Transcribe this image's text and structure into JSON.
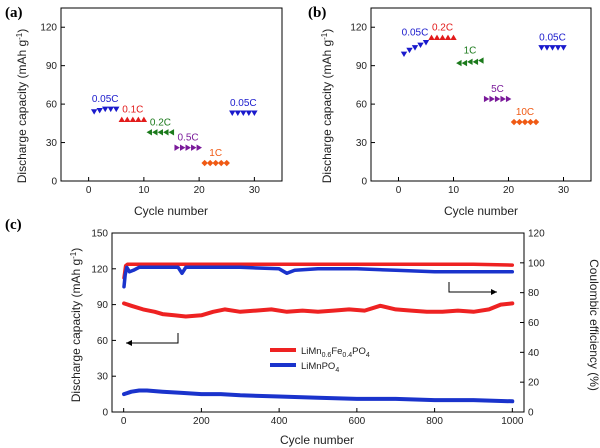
{
  "chart_data": [
    {
      "id": "a",
      "panel_label": "(a)",
      "type": "scatter",
      "xlabel": "Cycle number",
      "ylabel": "Discharge capacity (mAh g",
      "ylabel_unit_sup": "-1",
      "ylabel_close": ")",
      "xlim": [
        -5,
        35
      ],
      "ylim": [
        0,
        135
      ],
      "xticks": [
        0,
        10,
        20,
        30
      ],
      "yticks": [
        0,
        30,
        60,
        90,
        120
      ],
      "groups": [
        {
          "label": "0.05C",
          "color": "#1a1acc",
          "marker": "triangle-down",
          "x": [
            1,
            2,
            3,
            4,
            5
          ],
          "y": [
            54,
            55,
            56,
            56,
            56
          ]
        },
        {
          "label": "0.1C",
          "color": "#e21b1b",
          "marker": "triangle-up",
          "x": [
            6,
            7,
            8,
            9,
            10
          ],
          "y": [
            48,
            48,
            48,
            48,
            48
          ]
        },
        {
          "label": "0.2C",
          "color": "#1b7a1b",
          "marker": "triangle-left",
          "x": [
            11,
            12,
            13,
            14,
            15
          ],
          "y": [
            38,
            38,
            38,
            38,
            38
          ]
        },
        {
          "label": "0.5C",
          "color": "#7a1a9a",
          "marker": "triangle-right",
          "x": [
            16,
            17,
            18,
            19,
            20
          ],
          "y": [
            26,
            26,
            26,
            26,
            26
          ]
        },
        {
          "label": "1C",
          "color": "#f05a14",
          "marker": "diamond",
          "x": [
            21,
            22,
            23,
            24,
            25
          ],
          "y": [
            14,
            14,
            14,
            14,
            14
          ]
        },
        {
          "label": "0.05C",
          "color": "#1a1acc",
          "marker": "triangle-down",
          "x": [
            26,
            27,
            28,
            29,
            30
          ],
          "y": [
            53,
            53,
            53,
            53,
            53
          ]
        }
      ]
    },
    {
      "id": "b",
      "panel_label": "(b)",
      "type": "scatter",
      "xlabel": "Cycle number",
      "ylabel": "Discharge capacity (mAh g",
      "ylabel_unit_sup": "-1",
      "ylabel_close": ")",
      "xlim": [
        -5,
        35
      ],
      "ylim": [
        0,
        135
      ],
      "xticks": [
        0,
        10,
        20,
        30
      ],
      "yticks": [
        0,
        30,
        60,
        90,
        120
      ],
      "groups": [
        {
          "label": "0.05C",
          "color": "#1a1acc",
          "marker": "triangle-down",
          "x": [
            1,
            2,
            3,
            4,
            5
          ],
          "y": [
            99,
            102,
            104,
            106,
            108
          ]
        },
        {
          "label": "0.2C",
          "color": "#e21b1b",
          "marker": "triangle-up",
          "x": [
            6,
            7,
            8,
            9,
            10
          ],
          "y": [
            112,
            112,
            112,
            112,
            112
          ]
        },
        {
          "label": "1C",
          "color": "#1b7a1b",
          "marker": "triangle-left",
          "x": [
            11,
            12,
            13,
            14,
            15
          ],
          "y": [
            92,
            92,
            93,
            93,
            94
          ]
        },
        {
          "label": "5C",
          "color": "#7a1a9a",
          "marker": "triangle-right",
          "x": [
            16,
            17,
            18,
            19,
            20
          ],
          "y": [
            64,
            64,
            64,
            64,
            64
          ]
        },
        {
          "label": "10C",
          "color": "#f05a14",
          "marker": "diamond",
          "x": [
            21,
            22,
            23,
            24,
            25
          ],
          "y": [
            46,
            46,
            46,
            46,
            46
          ]
        },
        {
          "label": "0.05C",
          "color": "#1a1acc",
          "marker": "triangle-down",
          "x": [
            26,
            27,
            28,
            29,
            30
          ],
          "y": [
            104,
            104,
            104,
            104,
            104
          ]
        }
      ]
    },
    {
      "id": "c",
      "panel_label": "(c)",
      "type": "line",
      "xlabel": "Cycle number",
      "ylabel": "Discharge capacity (mAh g",
      "ylabel_unit_sup": "-1",
      "ylabel_close": ")",
      "y2label": "Coulombic efficiency (%)",
      "xlim": [
        -30,
        1030
      ],
      "ylim": [
        0,
        150
      ],
      "y2lim": [
        0,
        120
      ],
      "xticks": [
        0,
        200,
        400,
        600,
        800,
        1000
      ],
      "yticks": [
        0,
        30,
        60,
        90,
        120,
        150
      ],
      "y2ticks": [
        0,
        20,
        40,
        60,
        80,
        100,
        120
      ],
      "legend_position": "center-right",
      "series": [
        {
          "name": "LiMn",
          "name_sub1": "0.6",
          "name_mid": "Fe",
          "name_sub2": "0.4",
          "name_end": "PO",
          "name_sub3": "4",
          "color": "#ee2222",
          "axis": "left",
          "quantity": "discharge capacity",
          "x": [
            1,
            20,
            50,
            80,
            100,
            130,
            160,
            200,
            230,
            260,
            300,
            340,
            380,
            420,
            460,
            500,
            540,
            580,
            620,
            660,
            700,
            740,
            780,
            820,
            860,
            900,
            940,
            970,
            1000
          ],
          "y": [
            91,
            89,
            86,
            84,
            82,
            81,
            80,
            81,
            84,
            86,
            84,
            85,
            86,
            84,
            85,
            84,
            85,
            86,
            85,
            89,
            86,
            85,
            84,
            84,
            85,
            84,
            86,
            90,
            91
          ]
        },
        {
          "name": "LiMnPO",
          "name_sub1": "4",
          "color": "#1a33cc",
          "axis": "left",
          "quantity": "discharge capacity",
          "x": [
            1,
            20,
            40,
            60,
            100,
            150,
            200,
            250,
            300,
            400,
            500,
            600,
            700,
            800,
            900,
            1000
          ],
          "y": [
            15,
            17,
            18,
            18,
            17,
            16,
            15,
            15,
            14,
            13,
            12,
            11,
            11,
            10,
            10,
            9
          ]
        },
        {
          "color": "#ee2222",
          "axis": "right",
          "quantity": "coulombic efficiency",
          "x": [
            1,
            5,
            10,
            50,
            100,
            200,
            300,
            400,
            500,
            600,
            700,
            800,
            900,
            1000
          ],
          "y": [
            90,
            98,
            99,
            99,
            99,
            99,
            99,
            99,
            99,
            99,
            99,
            99,
            99,
            98.5
          ]
        },
        {
          "color": "#1a33cc",
          "axis": "right",
          "quantity": "coulombic efficiency",
          "x": [
            1,
            4,
            8,
            15,
            25,
            40,
            60,
            100,
            140,
            150,
            160,
            200,
            300,
            400,
            420,
            440,
            500,
            600,
            700,
            800,
            900,
            1000
          ],
          "y": [
            84,
            92,
            97,
            94,
            95,
            97,
            97,
            97,
            97,
            93,
            97,
            97,
            97,
            96,
            93,
            95,
            96,
            96,
            95,
            94,
            94,
            94
          ]
        }
      ]
    }
  ]
}
